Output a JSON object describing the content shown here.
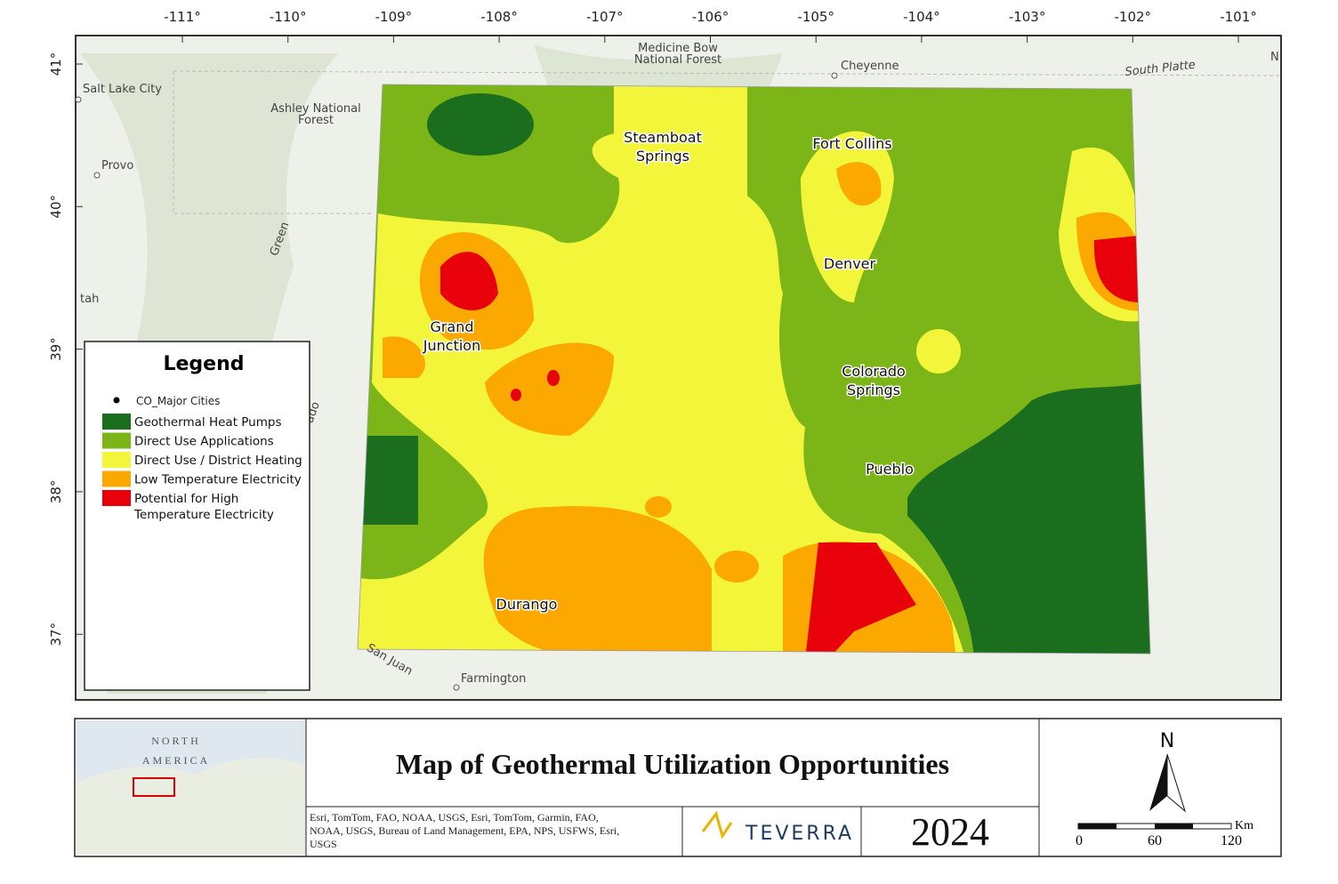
{
  "map": {
    "longitude_labels": [
      "-111°",
      "-110°",
      "-109°",
      "-108°",
      "-107°",
      "-106°",
      "-105°",
      "-104°",
      "-103°",
      "-102°",
      "-101°"
    ],
    "latitude_labels": [
      "41°",
      "40°",
      "39°",
      "38°",
      "37°"
    ],
    "places": [
      {
        "lines": [
          "Salt Lake City"
        ]
      },
      {
        "lines": [
          "Provo"
        ]
      },
      {
        "lines": [
          "Ashley National",
          "Forest"
        ]
      },
      {
        "lines": [
          "Medicine Bow",
          "National Forest"
        ]
      },
      {
        "lines": [
          "Cheyenne"
        ]
      },
      {
        "lines": [
          "South Platte"
        ]
      },
      {
        "lines": [
          "N"
        ]
      },
      {
        "lines": [
          "Green"
        ]
      },
      {
        "lines": [
          "tah"
        ]
      },
      {
        "lines": [
          "ado"
        ]
      },
      {
        "lines": [
          "San Juan"
        ]
      },
      {
        "lines": [
          "Farmington"
        ]
      }
    ],
    "cities": [
      {
        "lines": [
          "Steamboat",
          "Springs"
        ]
      },
      {
        "lines": [
          "Fort Collins"
        ]
      },
      {
        "lines": [
          "Denver"
        ]
      },
      {
        "lines": [
          "Grand",
          "Junction"
        ]
      },
      {
        "lines": [
          "Colorado",
          "Springs"
        ]
      },
      {
        "lines": [
          "Pueblo"
        ]
      },
      {
        "lines": [
          "Durango"
        ]
      }
    ],
    "legend": {
      "title": "Legend",
      "items": [
        {
          "lines": [
            "CO_Major Cities"
          ],
          "color": "#000000"
        },
        {
          "lines": [
            "Geothermal Heat Pumps"
          ],
          "color": "#1c6e1f"
        },
        {
          "lines": [
            "Direct Use Applications"
          ],
          "color": "#7cb518"
        },
        {
          "lines": [
            "Direct Use / District Heating"
          ],
          "color": "#f2f53a"
        },
        {
          "lines": [
            "Low Temperature Electricity"
          ],
          "color": "#fba800"
        },
        {
          "lines": [
            "Potential for High",
            "Temperature Electricity"
          ],
          "color": "#e8000b"
        }
      ]
    }
  },
  "footer": {
    "inset_labels": [
      "NORTH",
      "AMERICA"
    ],
    "title": "Map of  Geothermal Utilization Opportunities",
    "credits": [
      "Esri, TomTom, FAO, NOAA, USGS, Esri, TomTom, Garmin, FAO,",
      "NOAA, USGS, Bureau of Land Management, EPA, NPS, USFWS, Esri,",
      "USGS"
    ],
    "logo": "TEVERRA",
    "year": "2024",
    "north": "N",
    "scale": {
      "labels": [
        "0",
        "60",
        "120"
      ],
      "unit": "Km"
    }
  }
}
